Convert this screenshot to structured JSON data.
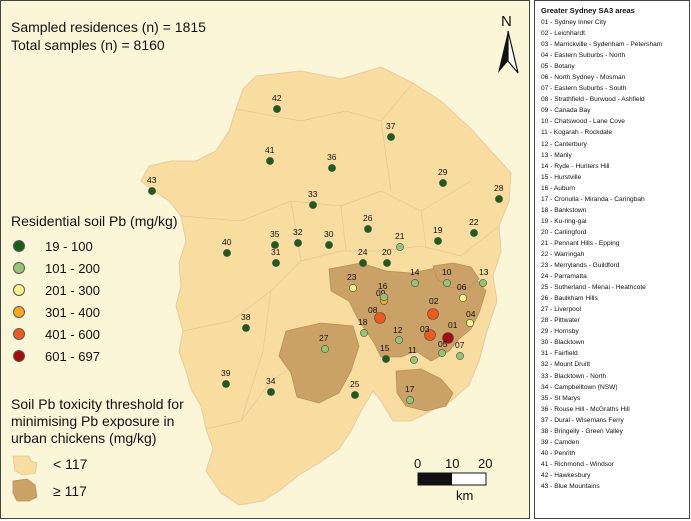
{
  "stats": {
    "residences": "Sampled residences (n) = 1815",
    "samples": "Total samples (n) = 8160"
  },
  "north_arrow": {
    "label": "N"
  },
  "pb_legend": {
    "title": "Residential soil Pb (mg/kg)",
    "classes": [
      {
        "label": "19 - 100",
        "color": "#1a5e1a"
      },
      {
        "label": "101 - 200",
        "color": "#93c572"
      },
      {
        "label": "201 - 300",
        "color": "#fbf38a"
      },
      {
        "label": "301 - 400",
        "color": "#f7a81b"
      },
      {
        "label": "401 - 600",
        "color": "#ee5a1b"
      },
      {
        "label": "601 - 697",
        "color": "#a50d0d"
      }
    ]
  },
  "toxicity_legend": {
    "title": "Soil Pb toxicity threshold for minimising Pb exposure in urban chickens (mg/kg)",
    "items": [
      {
        "label": "< 117",
        "color": "#f9dca0"
      },
      {
        "label": "≥ 117",
        "color": "#caa268"
      }
    ]
  },
  "scale_bar": {
    "ticks": [
      "0",
      "10",
      "20"
    ],
    "unit": "km"
  },
  "sa3_legend": {
    "title": "Greater Sydney SA3 areas",
    "items": [
      "01 - Sydney Inner City",
      "02 - Leichhardt",
      "03 - Marrickville - Sydenham - Petersham",
      "04 - Eastern Suburbs - North",
      "05 - Botany",
      "06 - North Sydney - Mosman",
      "07 - Eastern Suburbs - South",
      "08 - Strathfield - Burwood - Ashfield",
      "09 - Canada Bay",
      "10 - Chatswood - Lane Cove",
      "11 - Kogarah - Rockdale",
      "12 - Canterbury",
      "13 - Manly",
      "14 - Ryde - Hunters Hill",
      "15 - Hurstville",
      "16 - Auburn",
      "17 - Cronulla - Miranda - Caringbah",
      "18 - Bankstown",
      "19 - Ku-ring-gai",
      "20 - Carlingford",
      "21 - Pennant Hills - Epping",
      "22 - Warringah",
      "23 - Merrylands - Guildford",
      "24 - Parramatta",
      "25 - Sutherland - Menai - Heathcote",
      "26 - Baulkham Hills",
      "27 - Liverpool",
      "28 - Pittwater",
      "29 - Hornsby",
      "30 - Blacktown",
      "31 - Fairfield",
      "32 - Mount Druitt",
      "33 - Blacktown - North",
      "34 - Campbelltown (NSW)",
      "35 - St Marys",
      "36 - Rouse Hill - McGraths Hill",
      "37 - Dural - Wisemans Ferry",
      "38 - Bringelly - Green Valley",
      "39 - Camden",
      "40 - Penrith",
      "41 - Richmond - Windsor",
      "42 - Hawkesbury",
      "43 - Blue Mountains"
    ]
  },
  "sites": [
    {
      "id": "01",
      "cls": 5
    },
    {
      "id": "02",
      "cls": 4
    },
    {
      "id": "03",
      "cls": 4
    },
    {
      "id": "04",
      "cls": 2
    },
    {
      "id": "05",
      "cls": 1
    },
    {
      "id": "06",
      "cls": 2
    },
    {
      "id": "07",
      "cls": 1
    },
    {
      "id": "08",
      "cls": 4
    },
    {
      "id": "09",
      "cls": 3
    },
    {
      "id": "10",
      "cls": 1
    },
    {
      "id": "11",
      "cls": 1
    },
    {
      "id": "12",
      "cls": 1
    },
    {
      "id": "13",
      "cls": 1
    },
    {
      "id": "14",
      "cls": 1
    },
    {
      "id": "15",
      "cls": 0
    },
    {
      "id": "16",
      "cls": 1
    },
    {
      "id": "17",
      "cls": 1
    },
    {
      "id": "18",
      "cls": 1
    },
    {
      "id": "19",
      "cls": 0
    },
    {
      "id": "20",
      "cls": 0
    },
    {
      "id": "21",
      "cls": 1
    },
    {
      "id": "22",
      "cls": 0
    },
    {
      "id": "23",
      "cls": 2
    },
    {
      "id": "24",
      "cls": 0
    },
    {
      "id": "25",
      "cls": 0
    },
    {
      "id": "26",
      "cls": 0
    },
    {
      "id": "27",
      "cls": 1
    },
    {
      "id": "28",
      "cls": 0
    },
    {
      "id": "29",
      "cls": 0
    },
    {
      "id": "30",
      "cls": 0
    },
    {
      "id": "31",
      "cls": 0
    },
    {
      "id": "32",
      "cls": 0
    },
    {
      "id": "33",
      "cls": 0
    },
    {
      "id": "34",
      "cls": 0
    },
    {
      "id": "35",
      "cls": 0
    },
    {
      "id": "36",
      "cls": 0
    },
    {
      "id": "37",
      "cls": 0
    },
    {
      "id": "38",
      "cls": 0
    },
    {
      "id": "39",
      "cls": 0
    },
    {
      "id": "40",
      "cls": 0
    },
    {
      "id": "41",
      "cls": 0
    },
    {
      "id": "42",
      "cls": 0
    },
    {
      "id": "43",
      "cls": 0
    }
  ]
}
